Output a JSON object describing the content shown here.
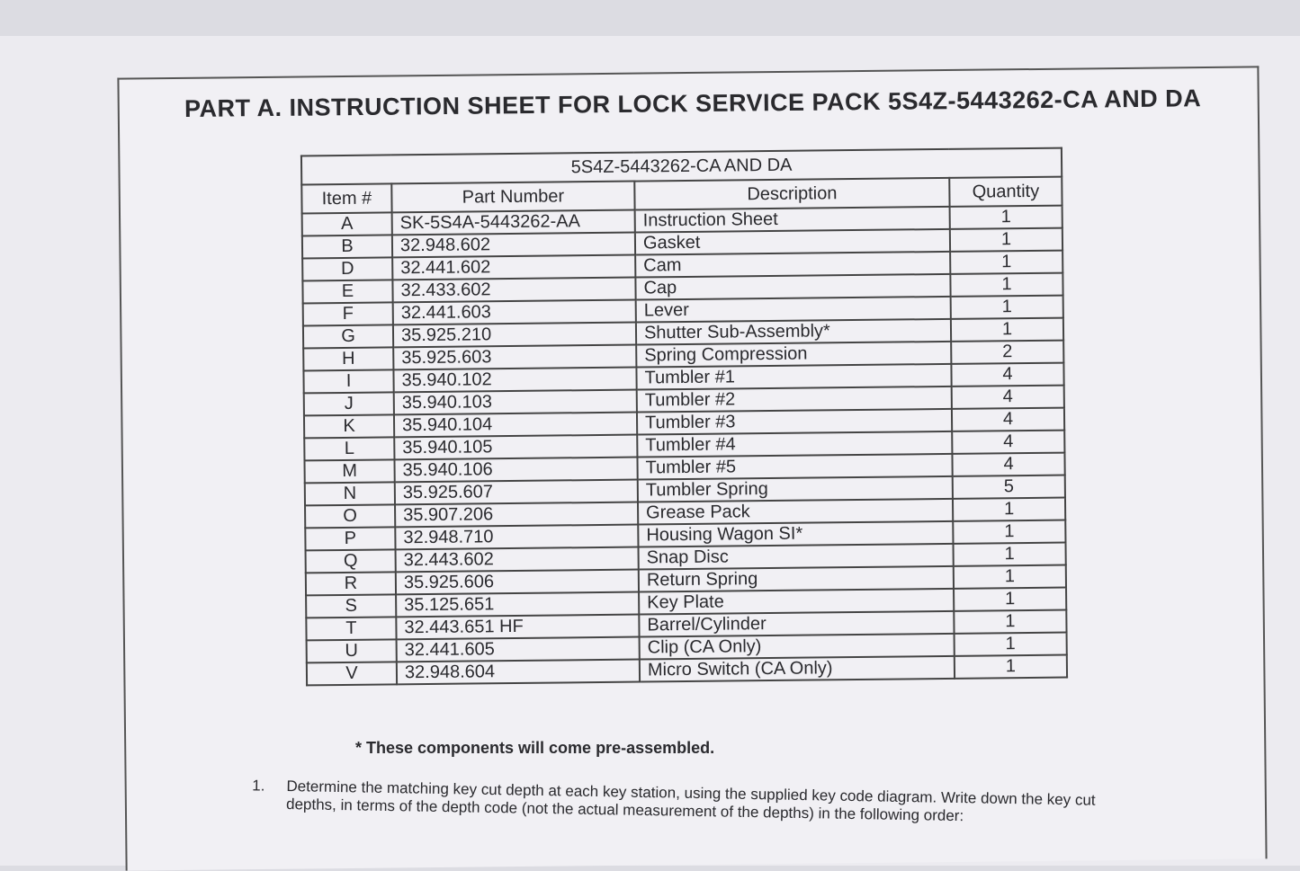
{
  "header": {
    "title": "PART A. INSTRUCTION SHEET FOR LOCK SERVICE PACK 5S4Z-5443262-CA AND DA"
  },
  "table": {
    "caption": "5S4Z-5443262-CA AND DA",
    "columns": [
      "Item #",
      "Part Number",
      "Description",
      "Quantity"
    ],
    "rows": [
      [
        "A",
        "SK-5S4A-5443262-AA",
        "Instruction Sheet",
        1
      ],
      [
        "B",
        "32.948.602",
        "Gasket",
        1
      ],
      [
        "D",
        "32.441.602",
        "Cam",
        1
      ],
      [
        "E",
        "32.433.602",
        "Cap",
        1
      ],
      [
        "F",
        "32.441.603",
        "Lever",
        1
      ],
      [
        "G",
        "35.925.210",
        "Shutter Sub-Assembly*",
        1
      ],
      [
        "H",
        "35.925.603",
        "Spring Compression",
        2
      ],
      [
        "I",
        "35.940.102",
        "Tumbler #1",
        4
      ],
      [
        "J",
        "35.940.103",
        "Tumbler #2",
        4
      ],
      [
        "K",
        "35.940.104",
        "Tumbler #3",
        4
      ],
      [
        "L",
        "35.940.105",
        "Tumbler #4",
        4
      ],
      [
        "M",
        "35.940.106",
        "Tumbler #5",
        4
      ],
      [
        "N",
        "35.925.607",
        "Tumbler Spring",
        5
      ],
      [
        "O",
        "35.907.206",
        "Grease Pack",
        1
      ],
      [
        "P",
        "32.948.710",
        "Housing Wagon SI*",
        1
      ],
      [
        "Q",
        "32.443.602",
        "Snap Disc",
        1
      ],
      [
        "R",
        "35.925.606",
        "Return Spring",
        1
      ],
      [
        "S",
        "35.125.651",
        "Key Plate",
        1
      ],
      [
        "T",
        "32.443.651 HF",
        "Barrel/Cylinder",
        1
      ],
      [
        "U",
        "32.441.605",
        "Clip (CA Only)",
        1
      ],
      [
        "V",
        "32.948.604",
        "Micro Switch (CA Only)",
        1
      ]
    ]
  },
  "footnote": "* These components will come pre-assembled.",
  "steps": [
    {
      "number": "1.",
      "text": "Determine the matching key cut depth at each key station, using the supplied key code diagram. Write down the key cut depths, in terms of the depth code (not the actual measurement of the depths) in the following order:"
    }
  ]
}
